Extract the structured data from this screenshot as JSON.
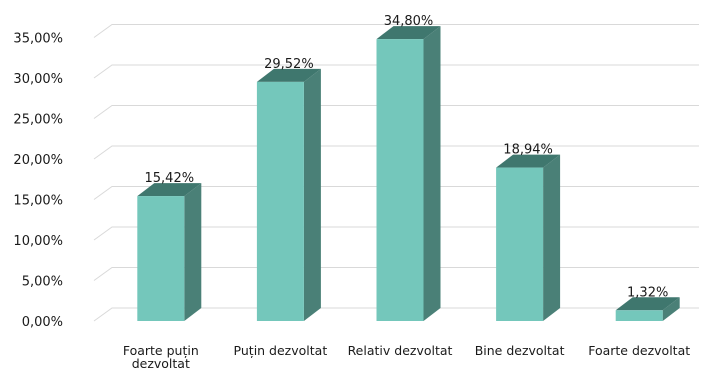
{
  "chart_data": {
    "type": "bar",
    "style": "3d-column",
    "categories": [
      "Foarte puțin dezvoltat",
      "Puțin dezvoltat",
      "Relativ dezvoltat",
      "Bine dezvoltat",
      "Foarte dezvoltat"
    ],
    "category_lines": [
      [
        "Foarte puțin",
        "dezvoltat"
      ],
      [
        "Puțin dezvoltat"
      ],
      [
        "Relativ dezvoltat"
      ],
      [
        "Bine dezvoltat"
      ],
      [
        "Foarte dezvoltat"
      ]
    ],
    "values": [
      15.42,
      29.52,
      34.8,
      18.94,
      1.32
    ],
    "data_labels": [
      "15,42%",
      "29,52%",
      "34,80%",
      "18,94%",
      "1,32%"
    ],
    "y_ticks": [
      0,
      5,
      10,
      15,
      20,
      25,
      30,
      35
    ],
    "y_tick_labels": [
      "0,00%",
      "5,00%",
      "10,00%",
      "15,00%",
      "20,00%",
      "25,00%",
      "30,00%",
      "35,00%"
    ],
    "ylim": [
      0,
      37.5
    ],
    "grid": true,
    "legend": "none",
    "colors": {
      "bar_front": "#74c7bb",
      "bar_side": "#4a8077",
      "bar_top": "#3f776e",
      "grid": "#d9d9d9"
    }
  }
}
